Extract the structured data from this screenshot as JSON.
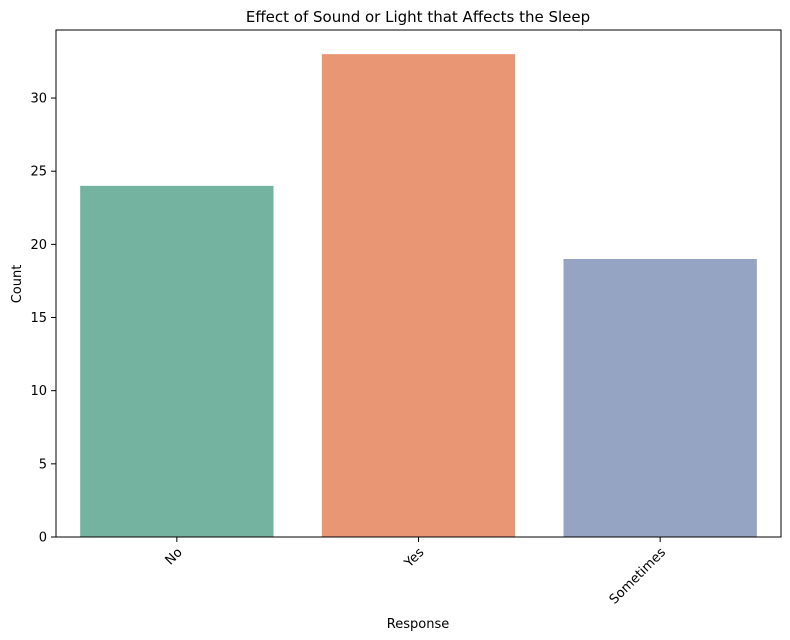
{
  "chart_data": {
    "type": "bar",
    "title": "Effect of Sound or Light that Affects the Sleep",
    "xlabel": "Response",
    "ylabel": "Count",
    "categories": [
      "No",
      "Yes",
      "Sometimes"
    ],
    "values": [
      24,
      33,
      19
    ],
    "colors": [
      "#73b3a0",
      "#e89674",
      "#95a4c2"
    ],
    "ylim": [
      0,
      34.65
    ],
    "yticks": [
      0,
      5,
      10,
      15,
      20,
      25,
      30
    ],
    "xtick_rotation_deg": 45,
    "grid": false,
    "legend": "none"
  }
}
